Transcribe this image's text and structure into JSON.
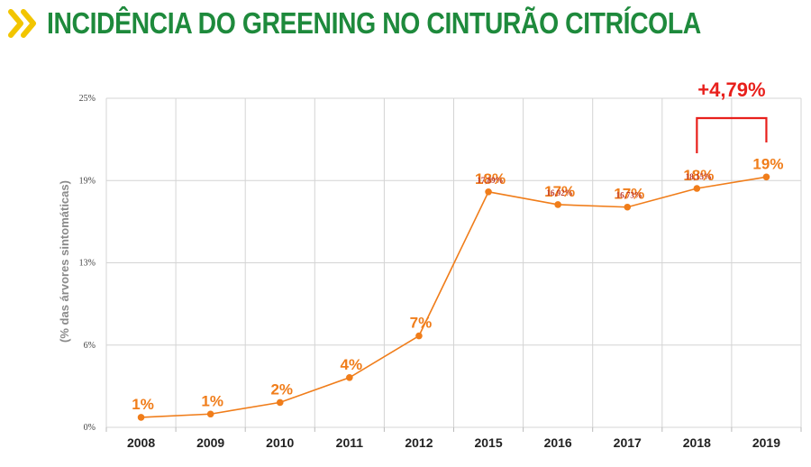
{
  "header": {
    "title": "INCIDÊNCIA DO GREENING NO CINTURÃO CITRÍCOLA",
    "icon": "double-chevron-right-icon",
    "title_color": "#1e8a3c",
    "icon_color": "#f2c500"
  },
  "chart_data": {
    "type": "line",
    "categories": [
      "2008",
      "2009",
      "2010",
      "2011",
      "2012",
      "2015",
      "2016",
      "2017",
      "2018",
      "2019"
    ],
    "series": [
      {
        "values": [
          0.76,
          1.01,
          1.89,
          3.78,
          6.95,
          17.89,
          16.92,
          16.73,
          18.15,
          19.02
        ]
      }
    ],
    "data_labels": [
      "1%",
      "1%",
      "2%",
      "4%",
      "7%",
      "18%",
      "17%",
      "17%",
      "18%",
      "19%"
    ],
    "secondary_labels": [
      "",
      "",
      "",
      "",
      "",
      "17,89%",
      "16,92%",
      "16,73%",
      "18,15%",
      ""
    ],
    "ylabel": "(% das árvores sintomáticas)",
    "xlabel": "",
    "yticks": [
      "0%",
      "6%",
      "13%",
      "19%",
      "25%"
    ],
    "ytick_values": [
      0,
      6.25,
      12.5,
      18.75,
      25
    ],
    "ylim": [
      0,
      25
    ],
    "grid": true,
    "line_color": "#f07d1a",
    "annotation": {
      "text": "+4,79%",
      "from": "2018",
      "to": "2019",
      "color": "#e8201c"
    }
  }
}
